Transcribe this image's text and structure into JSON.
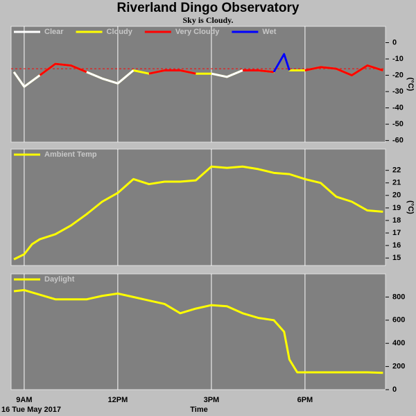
{
  "header": {
    "title": "Riverland Dingo Observatory",
    "subtitle": "Sky is Cloudy."
  },
  "footer": {
    "date": "16 Tue May 2017",
    "xlabel": "Time"
  },
  "chart_data": [
    {
      "type": "line",
      "ylabel": "(°C)",
      "x": [
        8.67,
        9,
        9.5,
        10,
        10.5,
        11,
        11.5,
        12,
        12.5,
        13,
        13.5,
        14,
        14.5,
        15,
        15.5,
        16,
        16.5,
        17,
        17.33,
        17.5,
        18,
        18.5,
        19,
        19.5,
        20,
        20.5
      ],
      "series": [
        {
          "name": "Clear",
          "color": "#ffffff",
          "values": [
            -18,
            -27,
            -20,
            null,
            null,
            -18,
            -22,
            -25,
            -17,
            null,
            null,
            null,
            null,
            -19,
            -21,
            -17,
            null,
            null,
            null,
            null,
            null,
            null,
            null,
            null,
            null,
            null
          ]
        },
        {
          "name": "Cloudy",
          "color": "#ffff00",
          "values": [
            -18,
            -27,
            -20,
            -13,
            -14,
            -18,
            -22,
            -25,
            -17,
            -19,
            -17,
            -17,
            -19,
            -19,
            -21,
            -17,
            -17,
            -18,
            -7,
            -17,
            -17,
            -15,
            -16,
            -20,
            -14,
            -17
          ]
        },
        {
          "name": "Very Cloudy",
          "color": "#ff0000",
          "values": [
            null,
            null,
            -20,
            -13,
            -14,
            -18,
            null,
            null,
            null,
            -19,
            -17,
            -17,
            -19,
            null,
            null,
            -17,
            -17,
            -18,
            null,
            null,
            -17,
            -15,
            -16,
            -20,
            -14,
            -17
          ]
        },
        {
          "name": "Wet",
          "color": "#0000ff",
          "values": [
            null,
            null,
            null,
            null,
            null,
            null,
            null,
            null,
            null,
            null,
            null,
            null,
            null,
            null,
            null,
            null,
            null,
            -18,
            -7,
            -17,
            null,
            null,
            null,
            null,
            null,
            null
          ]
        }
      ],
      "threshold": {
        "value": -16,
        "color": "#ff0000"
      },
      "xlim": [
        8.58,
        20.58
      ],
      "xticks": [
        9,
        12,
        15,
        18
      ],
      "ylim": [
        -61,
        10
      ],
      "yticks": [
        0,
        -10,
        -20,
        -30,
        -40,
        -50,
        -60
      ]
    },
    {
      "type": "line",
      "ylabel": "(°C)",
      "x": [
        8.67,
        9,
        9.25,
        9.5,
        10,
        10.5,
        11,
        11.5,
        12,
        12.5,
        13,
        13.5,
        14,
        14.5,
        15,
        15.5,
        16,
        16.5,
        17,
        17.5,
        18,
        18.5,
        19,
        19.5,
        20,
        20.5
      ],
      "series": [
        {
          "name": "Ambient Temp",
          "color": "#ffff00",
          "values": [
            14.9,
            15.3,
            16.1,
            16.5,
            16.9,
            17.6,
            18.5,
            19.5,
            20.2,
            21.3,
            20.9,
            21.1,
            21.1,
            21.2,
            22.3,
            22.2,
            22.3,
            22.1,
            21.8,
            21.7,
            21.3,
            21.0,
            19.9,
            19.5,
            18.8,
            18.7
          ]
        }
      ],
      "xlim": [
        8.58,
        20.58
      ],
      "xticks": [
        9,
        12,
        15,
        18
      ],
      "ylim": [
        14.4,
        23.7
      ],
      "yticks": [
        15,
        16,
        17,
        18,
        19,
        20,
        21,
        22
      ]
    },
    {
      "type": "line",
      "x": [
        8.67,
        9,
        9.5,
        10,
        10.5,
        11,
        11.5,
        12,
        12.5,
        13,
        13.5,
        14,
        14.5,
        15,
        15.5,
        16,
        16.5,
        17,
        17.33,
        17.5,
        17.75,
        18,
        19,
        20,
        20.5
      ],
      "series": [
        {
          "name": "Daylight",
          "color": "#ffff00",
          "values": [
            850,
            860,
            820,
            780,
            780,
            780,
            810,
            830,
            800,
            770,
            740,
            660,
            700,
            730,
            720,
            660,
            620,
            600,
            500,
            260,
            150,
            150,
            150,
            150,
            145
          ]
        }
      ],
      "xlim": [
        8.58,
        20.58
      ],
      "xticks": [
        {
          "value": 9,
          "label": "9AM"
        },
        {
          "value": 12,
          "label": "12PM"
        },
        {
          "value": 15,
          "label": "3PM"
        },
        {
          "value": 18,
          "label": "6PM"
        }
      ],
      "ylim": [
        0,
        1000
      ],
      "yticks": [
        0,
        200,
        400,
        600,
        800
      ]
    }
  ]
}
